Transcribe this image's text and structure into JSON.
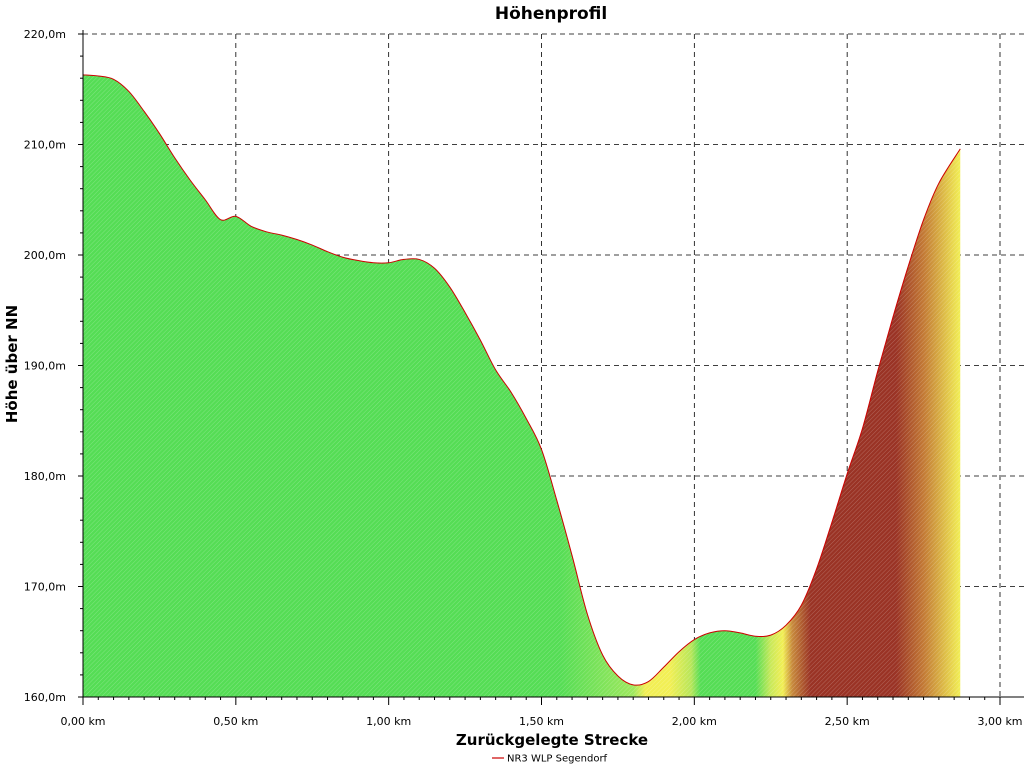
{
  "chart_data": {
    "type": "area",
    "title": "Höhenprofil",
    "xlabel": "Zurückgelegte Strecke",
    "ylabel": "Höhe über NN",
    "xlim": [
      0,
      3.0
    ],
    "ylim": [
      160,
      220
    ],
    "x_unit": "km",
    "y_unit": "m",
    "x_ticks": [
      "0,00 km",
      "0,50 km",
      "1,00 km",
      "1,50 km",
      "2,00 km",
      "2,50 km",
      "3,00 km"
    ],
    "y_ticks": [
      "160,0m",
      "170,0m",
      "180,0m",
      "190,0m",
      "200,0m",
      "210,0m",
      "220,0m"
    ],
    "grid": true,
    "legend_position": "bottom",
    "series": [
      {
        "name": "NR3 WLP Segendorf",
        "line_color": "#cc0000",
        "x": [
          0.0,
          0.05,
          0.1,
          0.15,
          0.2,
          0.25,
          0.3,
          0.35,
          0.4,
          0.45,
          0.5,
          0.55,
          0.6,
          0.65,
          0.7,
          0.75,
          0.8,
          0.85,
          0.9,
          0.95,
          1.0,
          1.05,
          1.1,
          1.15,
          1.2,
          1.25,
          1.3,
          1.35,
          1.4,
          1.45,
          1.5,
          1.55,
          1.6,
          1.65,
          1.7,
          1.75,
          1.8,
          1.85,
          1.9,
          1.95,
          2.0,
          2.05,
          2.1,
          2.15,
          2.2,
          2.25,
          2.3,
          2.35,
          2.4,
          2.45,
          2.5,
          2.55,
          2.6,
          2.65,
          2.7,
          2.75,
          2.8,
          2.87
        ],
        "values": [
          216.3,
          216.2,
          215.9,
          214.8,
          213.0,
          211.0,
          208.8,
          206.8,
          205.0,
          203.2,
          203.5,
          202.6,
          202.1,
          201.8,
          201.4,
          200.9,
          200.3,
          199.8,
          199.5,
          199.3,
          199.3,
          199.6,
          199.6,
          198.8,
          197.1,
          194.8,
          192.3,
          189.6,
          187.6,
          185.2,
          182.4,
          177.8,
          172.8,
          167.5,
          163.8,
          161.9,
          161.1,
          161.4,
          162.7,
          164.1,
          165.2,
          165.8,
          166.0,
          165.8,
          165.5,
          165.6,
          166.5,
          168.3,
          171.6,
          175.8,
          180.2,
          184.3,
          189.5,
          194.4,
          199.0,
          203.2,
          206.5,
          209.6
        ]
      }
    ],
    "gradient_zone_colors": {
      "green": "#55dd55",
      "yellow": "#f2ef55",
      "brown": "#9a3325"
    }
  }
}
